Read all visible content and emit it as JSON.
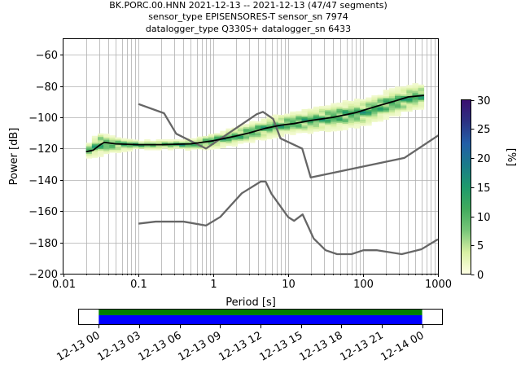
{
  "chart_data": [
    {
      "type": "heatmap",
      "title_lines": [
        "BK.PORC.00.HNN   2021-12-13 -- 2021-12-13  (47/47 segments)",
        "sensor_type EPISENSORES-T sensor_sn 7974",
        "datalogger_type Q330S+ datalogger_sn 6433"
      ],
      "xlabel": "Period [s]",
      "ylabel": "Power [dB]",
      "xscale": "log",
      "xlim": [
        0.01,
        1000
      ],
      "ylim": [
        -200,
        -50
      ],
      "x_tick_labels": [
        "0.01",
        "0.1",
        "1",
        "10",
        "100",
        "1000"
      ],
      "y_tick_labels": [
        "-200",
        "-180",
        "-160",
        "-140",
        "-120",
        "-100",
        "-80",
        "-60"
      ],
      "grid": true,
      "colorbar": {
        "label": "[%]",
        "range": [
          0,
          30
        ],
        "tick_labels": [
          "0",
          "5",
          "10",
          "15",
          "20",
          "25",
          "30"
        ],
        "colors": [
          "#ffffe5",
          "#d9f0a3",
          "#78c679",
          "#41ab5d",
          "#1d9a6c",
          "#1a7b8a",
          "#225ea8",
          "#2c3283",
          "#3b0f70"
        ]
      },
      "series": [
        {
          "role": "mode",
          "color": "#000000",
          "x": [
            0.02,
            0.025,
            0.03,
            0.035,
            0.05,
            0.1,
            0.2,
            0.5,
            1,
            2,
            3,
            5,
            8,
            12,
            20,
            40,
            80,
            150,
            250,
            400,
            650
          ],
          "y": [
            -122,
            -121,
            -118,
            -116,
            -117,
            -117.5,
            -117.5,
            -117,
            -115,
            -112,
            -110,
            -107,
            -105,
            -104,
            -102,
            -100,
            -97,
            -93,
            -90,
            -87,
            -86
          ]
        },
        {
          "role": "new-high-noise-model",
          "color": "#666666",
          "x": [
            0.1,
            0.22,
            0.32,
            0.8,
            3.8,
            4.6,
            6.3,
            7.9,
            15.4,
            20,
            354.8,
            10000
          ],
          "y": [
            -91.5,
            -97.4,
            -110.5,
            -120,
            -98,
            -96.5,
            -101,
            -113.5,
            -120,
            -138.5,
            -126,
            -80
          ]
        },
        {
          "role": "new-low-noise-model",
          "color": "#666666",
          "x": [
            0.1,
            0.17,
            0.4,
            0.8,
            1.24,
            2.4,
            4.3,
            5.0,
            6.0,
            10.0,
            12.0,
            15.6,
            21.9,
            31.6,
            45.0,
            70.0,
            101.0,
            154.0,
            328.0,
            600.0,
            1000.0
          ],
          "y": [
            -168,
            -166.7,
            -166.7,
            -169.2,
            -163.7,
            -148.6,
            -141.1,
            -141.1,
            -149,
            -163.8,
            -166.2,
            -162.1,
            -177.5,
            -185,
            -187.5,
            -187.5,
            -185,
            -185,
            -187.5,
            -184.4,
            -178
          ]
        }
      ],
      "histogram_band": {
        "x": [
          0.02,
          0.03,
          0.05,
          0.1,
          0.3,
          0.6,
          1,
          2,
          5,
          10,
          20,
          50,
          100,
          200,
          400,
          650
        ],
        "center": [
          -122,
          -117,
          -117.5,
          -117.5,
          -117.5,
          -117,
          -115,
          -112,
          -107,
          -104,
          -102,
          -99,
          -97,
          -92,
          -88,
          -86
        ],
        "spread_db": [
          4,
          8,
          5,
          3,
          3,
          4,
          5,
          6,
          7,
          7,
          8,
          9,
          9,
          9,
          9,
          8
        ]
      }
    },
    {
      "type": "timeline",
      "x_tick_labels": [
        "12-13 00",
        "12-13 03",
        "12-13 06",
        "12-13 09",
        "12-13 12",
        "12-13 15",
        "12-13 18",
        "12-13 21",
        "12-14 00"
      ],
      "range_hours": [
        -1.5,
        25.5
      ],
      "coverage_hours": [
        0,
        24
      ],
      "bars": [
        {
          "role": "data-available",
          "color": "#008000"
        },
        {
          "role": "data-used",
          "color": "#0000ff"
        }
      ]
    }
  ]
}
